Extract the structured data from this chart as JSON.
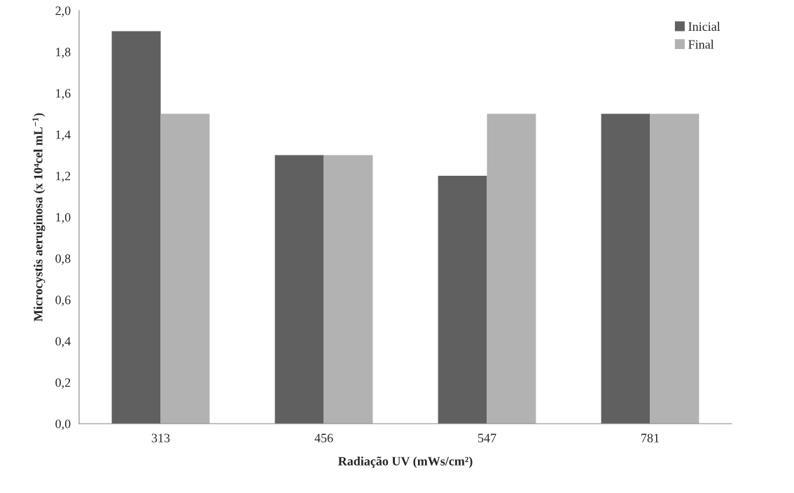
{
  "chart_data": {
    "type": "bar",
    "xlabel": "Radiação UV (mWs/cm²)",
    "ylabel": "Microcystis aeruginosa (x 10⁴cel mL$^{−1}$)",
    "categories": [
      "313",
      "456",
      "547",
      "781"
    ],
    "series": [
      {
        "name": "Inicial",
        "color": "#606060",
        "values": [
          1.9,
          1.3,
          1.2,
          1.5
        ]
      },
      {
        "name": "Final",
        "color": "#b2b2b2",
        "values": [
          1.5,
          1.3,
          1.5,
          1.5
        ]
      }
    ],
    "ylim": [
      0,
      2.0
    ],
    "yticks": [
      {
        "value": 0,
        "label": "0,0"
      },
      {
        "value": 0.2,
        "label": "0,2"
      },
      {
        "value": 0.4,
        "label": "0,4"
      },
      {
        "value": 0.6,
        "label": "0,6"
      },
      {
        "value": 0.8,
        "label": "0,8"
      },
      {
        "value": 1.0,
        "label": "1,0"
      },
      {
        "value": 1.2,
        "label": "1,2"
      },
      {
        "value": 1.4,
        "label": "1,4"
      },
      {
        "value": 1.6,
        "label": "1,6"
      },
      {
        "value": 1.8,
        "label": "1,8"
      },
      {
        "value": 2.0,
        "label": "2,0"
      }
    ],
    "grid": false,
    "legend": "top right"
  }
}
